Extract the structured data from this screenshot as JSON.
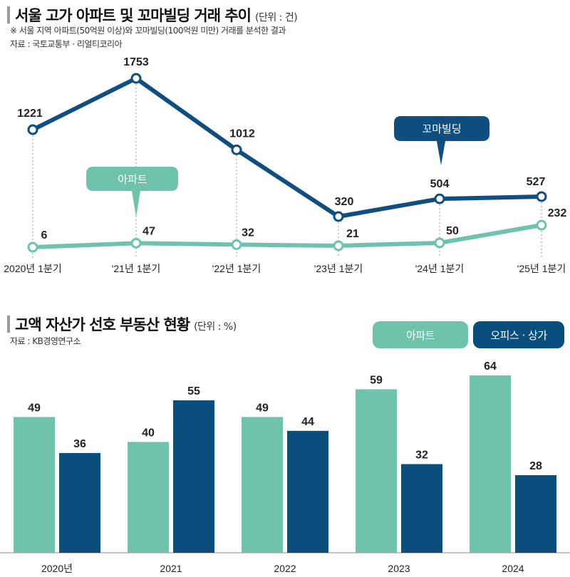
{
  "colors": {
    "apartment": "#6fc3ad",
    "building": "#0f4e7f",
    "office": "#0a4e7e",
    "grid": "#999999"
  },
  "chart_data": [
    {
      "type": "line",
      "title": "서울 고가 아파트 및 꼬마빌딩 거래 추이",
      "unit": "(단위 : 건)",
      "note": "※ 서울 지역 아파트(50억원 이상)와 꼬마빌딩(100억원 미만) 거래를 분석한 결과",
      "source": "자료 : 국토교통부 · 리얼티코리아",
      "categories": [
        "2020년 1분기",
        "'21년 1분기",
        "'22년 1분기",
        "'23년 1분기",
        "'24년 1분기",
        "'25년 1분기"
      ],
      "series": [
        {
          "name": "꼬마빌딩",
          "values": [
            1221,
            1753,
            1012,
            320,
            504,
            527
          ]
        },
        {
          "name": "아파트",
          "values": [
            6,
            47,
            32,
            21,
            50,
            232
          ]
        }
      ]
    },
    {
      "type": "bar",
      "title": "고액 자산가 선호 부동산 현황",
      "unit": "(단위 : %)",
      "source": "자료 : KB경영연구소",
      "categories": [
        "2020년",
        "2021",
        "2022",
        "2023",
        "2024"
      ],
      "ylim": [
        0,
        70
      ],
      "series": [
        {
          "name": "아파트",
          "values": [
            49,
            40,
            49,
            59,
            64
          ]
        },
        {
          "name": "오피스 · 상가",
          "values": [
            36,
            55,
            44,
            32,
            28
          ]
        }
      ]
    }
  ]
}
